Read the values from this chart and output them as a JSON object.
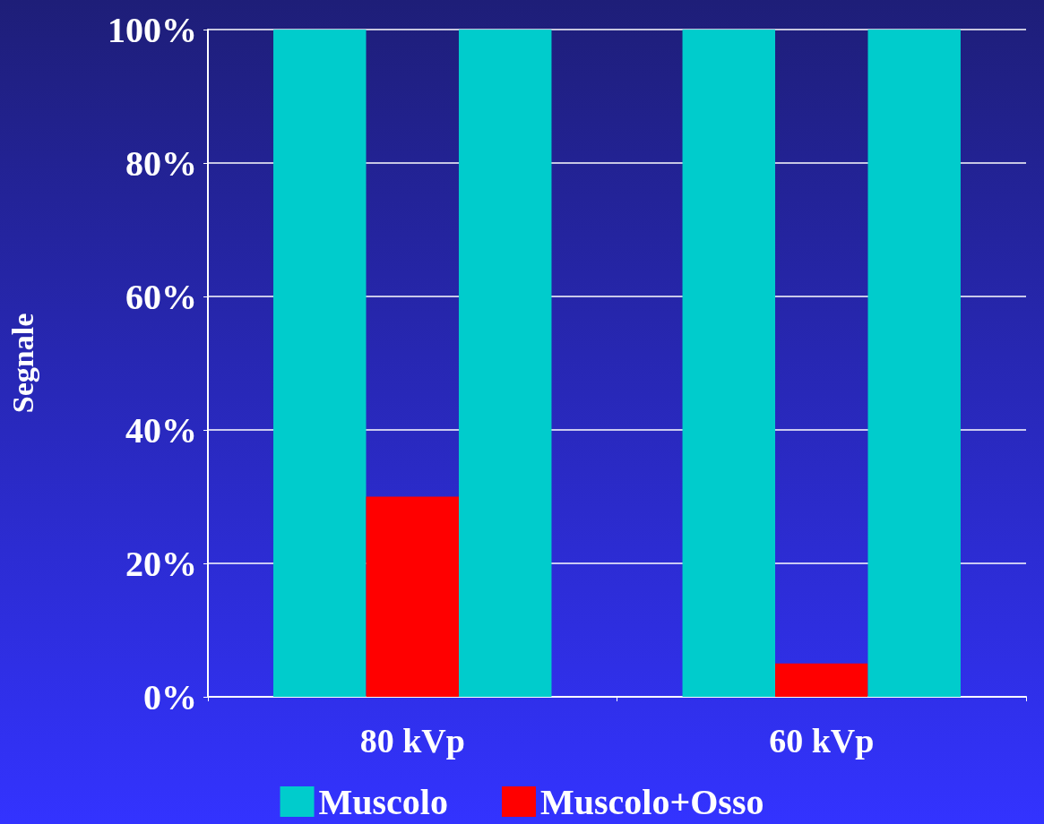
{
  "chart_data": {
    "type": "bar",
    "ylabel": "Segnale",
    "categories": [
      "80 kVp",
      "60 kVp"
    ],
    "series": [
      {
        "name": "Muscolo",
        "color": "#00cccc",
        "values": [
          100,
          100
        ]
      },
      {
        "name": "Muscolo+Osso",
        "color": "#ff0000",
        "values": [
          30,
          5
        ]
      },
      {
        "color": "#00cccc",
        "values": [
          100,
          100
        ]
      }
    ],
    "ylim": [
      0,
      100
    ],
    "yticks": [
      {
        "value": 0,
        "label": "0%"
      },
      {
        "value": 20,
        "label": "20%"
      },
      {
        "value": 40,
        "label": "40%"
      },
      {
        "value": 60,
        "label": "60%"
      },
      {
        "value": 80,
        "label": "80%"
      },
      {
        "value": 100,
        "label": "100%"
      }
    ],
    "grid": "y",
    "legend": "bottom"
  }
}
